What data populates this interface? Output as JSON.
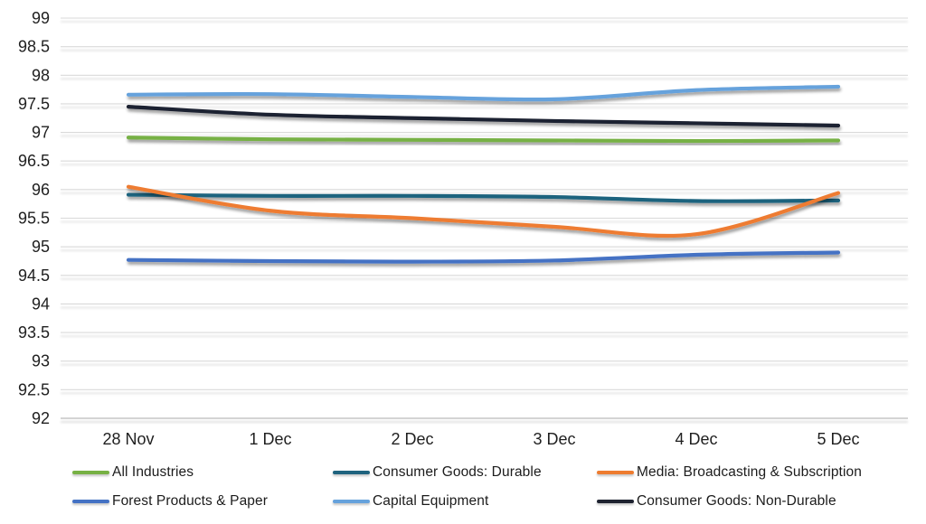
{
  "chart_data": {
    "type": "line",
    "smooth": true,
    "grid": true,
    "legend_position": "bottom",
    "x": [
      "28 Nov",
      "1 Dec",
      "2 Dec",
      "3 Dec",
      "4 Dec",
      "5 Dec"
    ],
    "ylim": [
      92,
      99
    ],
    "ytick_step": 0.5,
    "yticks": [
      "99",
      "98.5",
      "98",
      "97.5",
      "97",
      "96.5",
      "96",
      "95.5",
      "95",
      "94.5",
      "94",
      "93.5",
      "93",
      "92.5",
      "92"
    ],
    "series": [
      {
        "name": "All Industries",
        "color": "#77b144",
        "values": [
          96.91,
          96.88,
          96.87,
          96.86,
          96.85,
          96.86
        ]
      },
      {
        "name": "Consumer Goods: Durable",
        "color": "#1f637e",
        "values": [
          95.91,
          95.89,
          95.89,
          95.87,
          95.8,
          95.81
        ]
      },
      {
        "name": "Media: Broadcasting & Subscription",
        "color": "#ee7c30",
        "values": [
          96.05,
          95.63,
          95.5,
          95.35,
          95.22,
          95.94
        ]
      },
      {
        "name": "Forest Products & Paper",
        "color": "#4472c4",
        "values": [
          94.77,
          94.75,
          94.74,
          94.76,
          94.86,
          94.9
        ]
      },
      {
        "name": "Capital Equipment",
        "color": "#66a2dc",
        "values": [
          97.66,
          97.67,
          97.62,
          97.58,
          97.74,
          97.8
        ]
      },
      {
        "name": "Consumer Goods: Non-Durable",
        "color": "#1e2230",
        "values": [
          97.45,
          97.31,
          97.25,
          97.2,
          97.16,
          97.12
        ]
      }
    ],
    "colors": {
      "gridline": "#d9d9d9",
      "axis_line": "#c6c6c6",
      "tick_text": "#1f1f1f",
      "background": "#ffffff"
    }
  }
}
